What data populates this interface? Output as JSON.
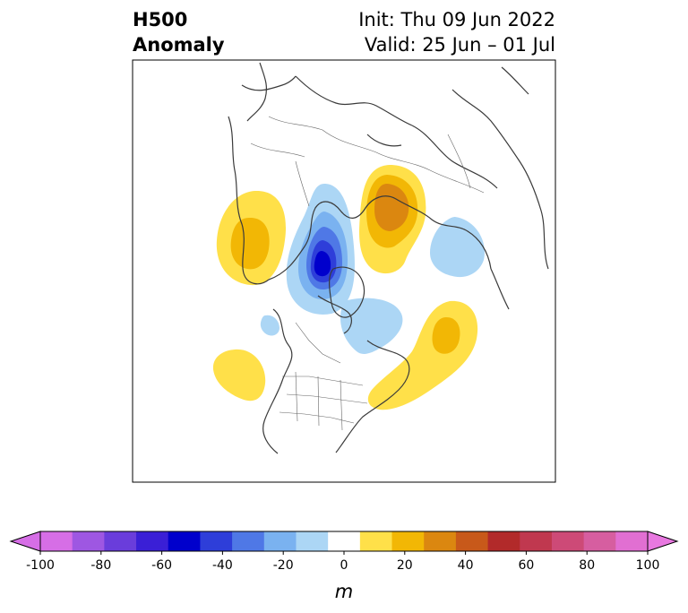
{
  "title": {
    "line1_left": "H500",
    "line2_left": "Anomaly",
    "line1_right": "Init: Thu 09 Jun 2022",
    "line2_right": "Valid: 25 Jun – 01 Jul"
  },
  "colorbar": {
    "unit": "m",
    "ticks": [
      "-100",
      "-80",
      "-60",
      "-40",
      "-20",
      "0",
      "20",
      "40",
      "60",
      "80",
      "100"
    ],
    "levels": [
      -100,
      -90,
      -80,
      -70,
      -60,
      -50,
      -40,
      -30,
      -20,
      -10,
      10,
      20,
      30,
      40,
      50,
      60,
      70,
      80,
      90,
      100
    ],
    "colors": [
      "#d66ee6",
      "#9e57e2",
      "#6a3ddb",
      "#3a1fd6",
      "#0000cc",
      "#2e3ed9",
      "#4f78e6",
      "#7ab2f0",
      "#acd6f5",
      "#ffffff",
      "#ffe049",
      "#f2b705",
      "#db8710",
      "#c8591a",
      "#b22a2a",
      "#c0384f",
      "#cd4a77",
      "#d65ea0",
      "#e16fd2"
    ],
    "extend_low_color": "#d66ee6",
    "extend_high_color": "#e878e0"
  },
  "map": {
    "land_color": "#ffffff",
    "coast_color": "#3a3a3a",
    "anomalies": [
      {
        "name": "west-positive",
        "sign": "positive",
        "max": 30
      },
      {
        "name": "scandinavia-positive",
        "sign": "positive",
        "max": 40
      },
      {
        "name": "atlantic-positive",
        "sign": "positive",
        "max": 20
      },
      {
        "name": "pacific-positive",
        "sign": "positive",
        "max": 10
      },
      {
        "name": "arctic-negative",
        "sign": "negative",
        "min": -60
      },
      {
        "name": "siberia-negative",
        "sign": "negative",
        "min": -10
      },
      {
        "name": "hudson-negative",
        "sign": "negative",
        "min": -10
      },
      {
        "name": "alaska-negative",
        "sign": "negative",
        "min": -10
      }
    ]
  }
}
